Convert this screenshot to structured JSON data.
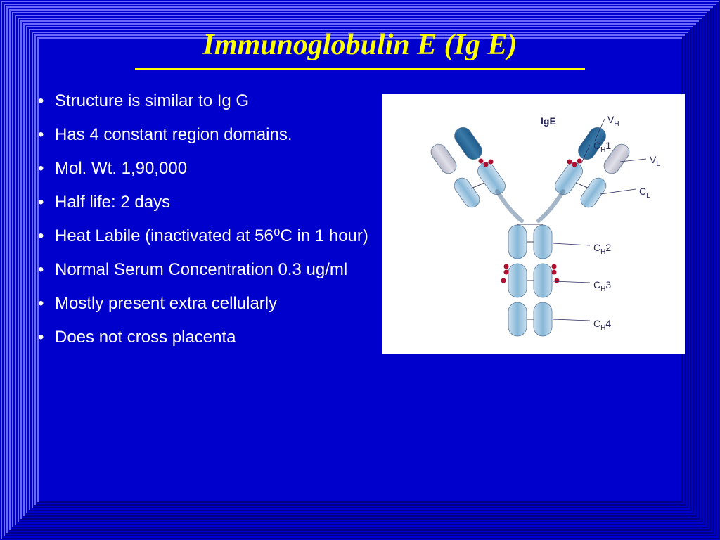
{
  "slide": {
    "background_color": "#0000cc",
    "border": {
      "color_light": "#6a6aff",
      "color_dark": "#000088",
      "layers": 14,
      "stroke_width": 2,
      "step": 4
    },
    "title": {
      "text": "Immunoglobulin E (Ig E)",
      "color": "#ffff00",
      "fontsize": 42,
      "underline_color": "#ffff00",
      "underline_width": 3
    },
    "bullets": {
      "color": "#ffffff",
      "fontsize": 24,
      "items": [
        "Structure is similar to Ig G",
        "Has 4 constant region domains.",
        "Mol. Wt. 1,90,000",
        "Half life: 2 days",
        "Heat Labile (inactivated at 56⁰C in 1 hour)",
        "Normal Serum Concentration 0.3 ug/ml",
        "Mostly present extra cellularly",
        "Does not cross placenta"
      ]
    },
    "diagram": {
      "bg": "#ffffff",
      "chain_light": "#cce0ef",
      "chain_mid": "#88b8d8",
      "chain_dark": "#3a7aa8",
      "chain_darker": "#1e5a8a",
      "variable_gray": "#b8b8c8",
      "carbo_dot": "#b01030",
      "stroke": "#5a7a9a",
      "label_color": "#2a2a5a",
      "labels": {
        "title": "IgE",
        "vh": "V",
        "vh_sub": "H",
        "vl": "V",
        "vl_sub": "L",
        "ch1": "C",
        "ch1_sub": "H",
        "ch1_post": "1",
        "cl": "C",
        "cl_sub": "L",
        "ch2": "C",
        "ch2_sub": "H",
        "ch2_post": "2",
        "ch3": "C",
        "ch3_sub": "H",
        "ch3_post": "3",
        "ch4": "C",
        "ch4_sub": "H",
        "ch4_post": "4"
      }
    }
  }
}
